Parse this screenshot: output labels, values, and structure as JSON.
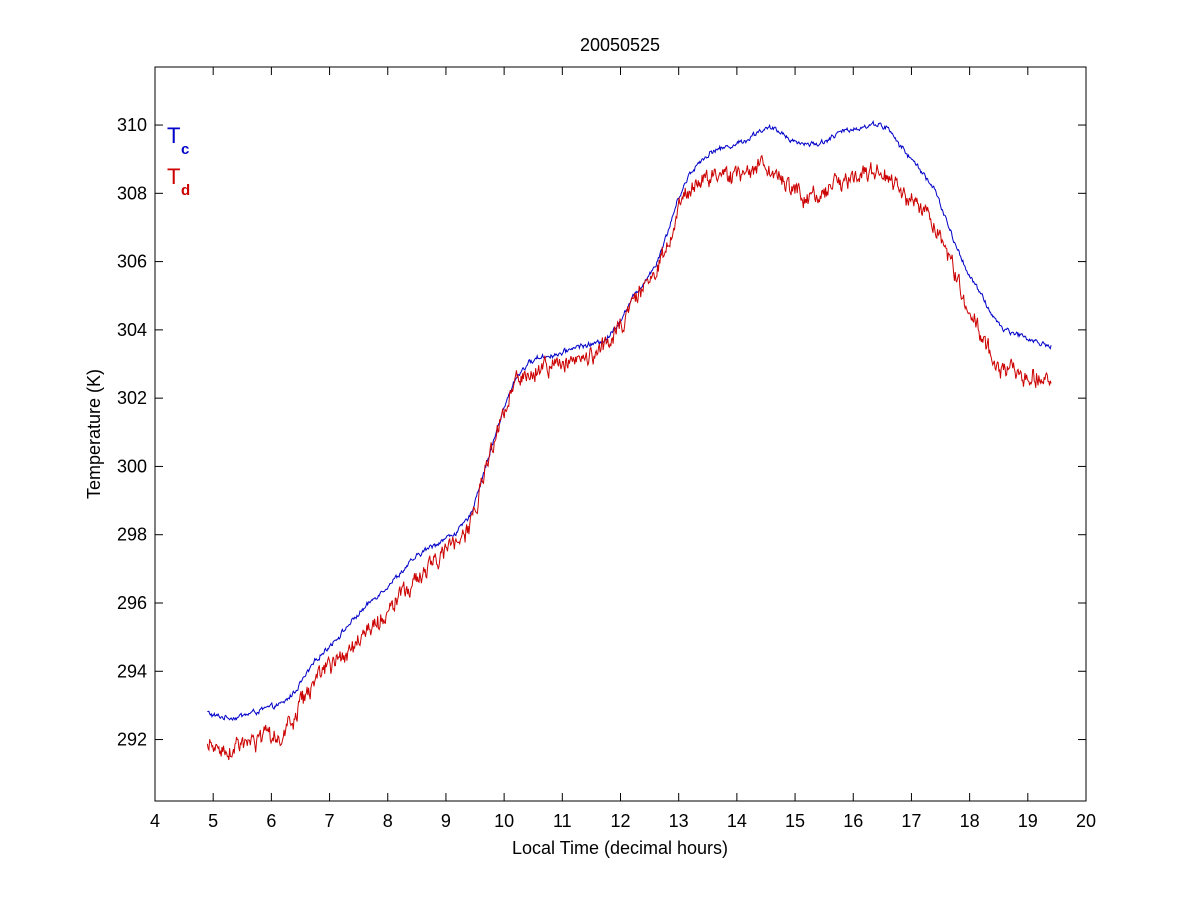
{
  "chart_data": {
    "type": "line",
    "title": "20050525",
    "xlabel": "Local Time (decimal hours)",
    "ylabel": "Temperature (K)",
    "xlim": [
      4,
      20
    ],
    "ylim": [
      290.2,
      311.7
    ],
    "xticks": [
      "4",
      "5",
      "6",
      "7",
      "8",
      "9",
      "10",
      "11",
      "12",
      "13",
      "14",
      "15",
      "16",
      "17",
      "18",
      "19",
      "20"
    ],
    "yticks": [
      "292",
      "294",
      "296",
      "298",
      "300",
      "302",
      "304",
      "306",
      "308",
      "310"
    ],
    "grid": false,
    "legend_position": "top-left",
    "series": [
      {
        "name_main": "T",
        "name_sub": "c",
        "color": "#0000c8",
        "noise": 0.06,
        "x": [
          4.9,
          5.0,
          5.2,
          5.4,
          5.6,
          5.8,
          6.0,
          6.2,
          6.4,
          6.6,
          6.8,
          7.0,
          7.2,
          7.4,
          7.6,
          7.8,
          8.0,
          8.2,
          8.4,
          8.6,
          8.8,
          9.0,
          9.2,
          9.4,
          9.5,
          9.7,
          9.9,
          10.0,
          10.2,
          10.4,
          10.6,
          10.8,
          11.0,
          11.2,
          11.4,
          11.6,
          11.8,
          12.0,
          12.2,
          12.4,
          12.6,
          12.8,
          13.0,
          13.2,
          13.4,
          13.6,
          13.8,
          14.0,
          14.2,
          14.4,
          14.6,
          14.8,
          15.0,
          15.2,
          15.4,
          15.6,
          15.8,
          16.0,
          16.2,
          16.4,
          16.6,
          16.8,
          17.0,
          17.2,
          17.4,
          17.6,
          17.8,
          18.0,
          18.2,
          18.4,
          18.6,
          18.8,
          19.0,
          19.2,
          19.4
        ],
        "y": [
          292.8,
          292.7,
          292.65,
          292.65,
          292.75,
          292.85,
          292.95,
          293.05,
          293.4,
          293.9,
          294.4,
          294.75,
          295.1,
          295.5,
          295.85,
          296.2,
          296.5,
          296.85,
          297.2,
          297.5,
          297.7,
          297.9,
          298.1,
          298.5,
          299.0,
          300.1,
          301.2,
          301.7,
          302.6,
          303.0,
          303.2,
          303.25,
          303.3,
          303.5,
          303.55,
          303.6,
          303.8,
          304.3,
          304.9,
          305.4,
          305.9,
          306.8,
          307.9,
          308.6,
          309.0,
          309.25,
          309.35,
          309.45,
          309.6,
          309.85,
          309.9,
          309.75,
          309.5,
          309.45,
          309.45,
          309.6,
          309.8,
          309.9,
          309.95,
          310.05,
          309.9,
          309.4,
          309.0,
          308.6,
          308.1,
          307.2,
          306.3,
          305.6,
          305.0,
          304.4,
          304.0,
          303.9,
          303.75,
          303.6,
          303.55
        ]
      },
      {
        "name_main": "T",
        "name_sub": "d",
        "color": "#cc0000",
        "noise": 0.22,
        "x": [
          4.9,
          5.0,
          5.2,
          5.4,
          5.6,
          5.8,
          6.0,
          6.2,
          6.4,
          6.6,
          6.8,
          7.0,
          7.2,
          7.4,
          7.6,
          7.8,
          8.0,
          8.2,
          8.4,
          8.6,
          8.8,
          9.0,
          9.2,
          9.4,
          9.5,
          9.7,
          9.9,
          10.0,
          10.2,
          10.4,
          10.6,
          10.8,
          11.0,
          11.2,
          11.4,
          11.6,
          11.8,
          12.0,
          12.2,
          12.4,
          12.6,
          12.8,
          13.0,
          13.2,
          13.4,
          13.6,
          13.8,
          14.0,
          14.2,
          14.4,
          14.6,
          14.8,
          15.0,
          15.2,
          15.4,
          15.6,
          15.8,
          16.0,
          16.2,
          16.4,
          16.6,
          16.8,
          17.0,
          17.2,
          17.4,
          17.6,
          17.8,
          18.0,
          18.2,
          18.4,
          18.6,
          18.8,
          19.0,
          19.2,
          19.4
        ],
        "y": [
          291.8,
          291.7,
          291.7,
          291.75,
          291.85,
          291.95,
          292.05,
          292.2,
          292.7,
          293.3,
          293.8,
          294.1,
          294.4,
          294.75,
          295.1,
          295.4,
          295.7,
          296.1,
          296.5,
          296.9,
          297.2,
          297.5,
          297.8,
          298.2,
          298.8,
          300.0,
          301.0,
          301.5,
          302.4,
          302.8,
          302.9,
          302.95,
          303.0,
          303.1,
          303.2,
          303.3,
          303.6,
          304.1,
          304.7,
          305.2,
          305.7,
          306.5,
          307.5,
          308.1,
          308.4,
          308.5,
          308.5,
          308.5,
          308.6,
          308.8,
          308.7,
          308.3,
          308.0,
          307.95,
          308.0,
          308.1,
          308.3,
          308.5,
          308.6,
          308.7,
          308.5,
          308.1,
          307.7,
          307.4,
          307.1,
          306.3,
          305.4,
          304.6,
          303.9,
          303.0,
          302.8,
          302.75,
          302.7,
          302.6,
          302.5
        ]
      }
    ]
  }
}
